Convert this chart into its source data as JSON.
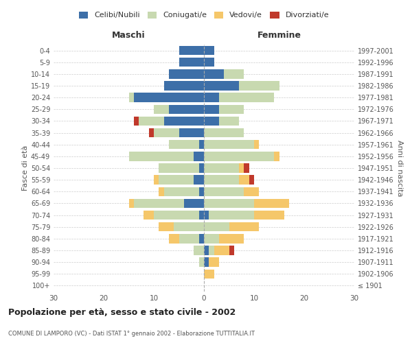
{
  "age_groups": [
    "100+",
    "95-99",
    "90-94",
    "85-89",
    "80-84",
    "75-79",
    "70-74",
    "65-69",
    "60-64",
    "55-59",
    "50-54",
    "45-49",
    "40-44",
    "35-39",
    "30-34",
    "25-29",
    "20-24",
    "15-19",
    "10-14",
    "5-9",
    "0-4"
  ],
  "birth_years": [
    "≤ 1901",
    "1902-1906",
    "1907-1911",
    "1912-1916",
    "1917-1921",
    "1922-1926",
    "1927-1931",
    "1932-1936",
    "1937-1941",
    "1942-1946",
    "1947-1951",
    "1952-1956",
    "1957-1961",
    "1962-1966",
    "1967-1971",
    "1972-1976",
    "1977-1981",
    "1982-1986",
    "1987-1991",
    "1992-1996",
    "1997-2001"
  ],
  "male": {
    "celibi": [
      0,
      0,
      0,
      0,
      1,
      0,
      1,
      4,
      1,
      2,
      1,
      2,
      1,
      5,
      8,
      7,
      14,
      8,
      7,
      5,
      5
    ],
    "coniugati": [
      0,
      0,
      1,
      2,
      4,
      6,
      9,
      10,
      7,
      7,
      8,
      13,
      6,
      5,
      5,
      3,
      1,
      0,
      0,
      0,
      0
    ],
    "vedovi": [
      0,
      0,
      0,
      0,
      2,
      3,
      2,
      1,
      1,
      1,
      0,
      0,
      0,
      0,
      0,
      0,
      0,
      0,
      0,
      0,
      0
    ],
    "divorziati": [
      0,
      0,
      0,
      0,
      0,
      0,
      0,
      0,
      0,
      0,
      0,
      0,
      0,
      1,
      1,
      0,
      0,
      0,
      0,
      0,
      0
    ]
  },
  "female": {
    "nubili": [
      0,
      0,
      1,
      1,
      0,
      0,
      1,
      0,
      0,
      0,
      0,
      0,
      0,
      0,
      3,
      3,
      3,
      7,
      4,
      2,
      2
    ],
    "coniugate": [
      0,
      0,
      0,
      1,
      3,
      5,
      9,
      10,
      8,
      7,
      7,
      14,
      10,
      8,
      4,
      5,
      11,
      8,
      4,
      0,
      0
    ],
    "vedove": [
      0,
      2,
      2,
      3,
      5,
      6,
      6,
      7,
      3,
      2,
      1,
      1,
      1,
      0,
      0,
      0,
      0,
      0,
      0,
      0,
      0
    ],
    "divorziate": [
      0,
      0,
      0,
      1,
      0,
      0,
      0,
      0,
      0,
      1,
      1,
      0,
      0,
      0,
      0,
      0,
      0,
      0,
      0,
      0,
      0
    ]
  },
  "colors": {
    "celibi_nubili": "#3d6fa8",
    "coniugati": "#c8d9b0",
    "vedovi": "#f5c76a",
    "divorziati": "#c0392b"
  },
  "xlim": 30,
  "title": "Popolazione per età, sesso e stato civile - 2002",
  "subtitle": "COMUNE DI LAMPORO (VC) - Dati ISTAT 1° gennaio 2002 - Elaborazione TUTTITALIA.IT",
  "ylabel_left": "Fasce di età",
  "ylabel_right": "Anni di nascita",
  "xlabel_male": "Maschi",
  "xlabel_female": "Femmine",
  "legend_labels": [
    "Celibi/Nubili",
    "Coniugati/e",
    "Vedovi/e",
    "Divorziati/e"
  ],
  "background_color": "#ffffff",
  "grid_color": "#cccccc"
}
